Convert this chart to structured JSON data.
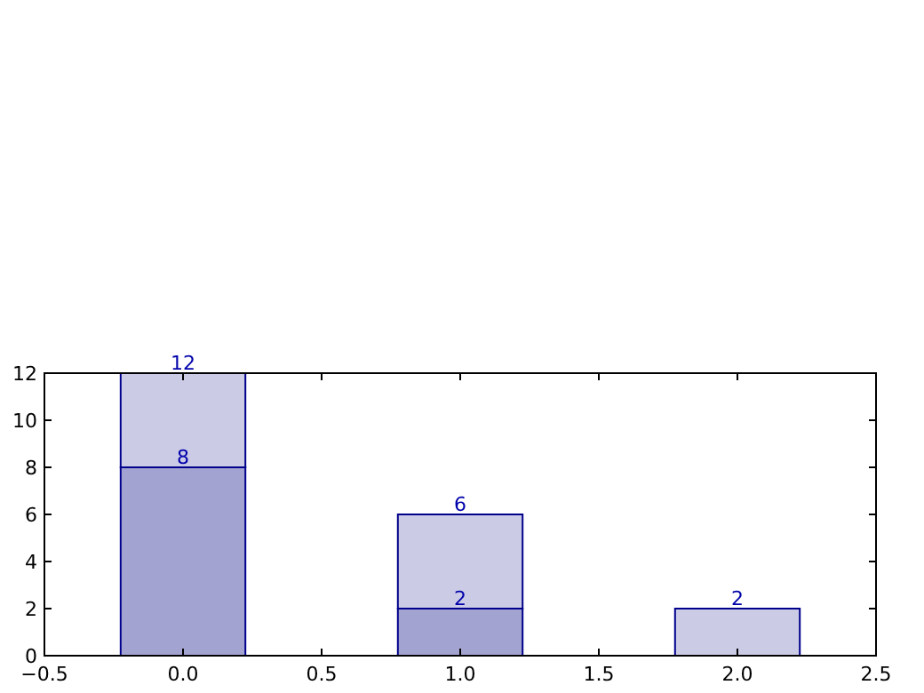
{
  "chart_data": {
    "type": "bar",
    "stacked": true,
    "x": [
      0,
      1,
      2
    ],
    "series": [
      {
        "color": "#a3a3d2",
        "values": [
          8,
          2,
          0
        ],
        "value_labels": [
          "8",
          "2",
          null
        ]
      },
      {
        "color": "#cbcbe6",
        "values": [
          4,
          4,
          2
        ]
      }
    ],
    "totals": [
      "12",
      "6",
      "2"
    ],
    "xlim": [
      -0.5,
      2.5
    ],
    "xticks": [
      {
        "value": -0.5,
        "label": "−0.5"
      },
      {
        "value": 0,
        "label": "0.0"
      },
      {
        "value": 0.5,
        "label": "0.5"
      },
      {
        "value": 1,
        "label": "1.0"
      },
      {
        "value": 1.5,
        "label": "1.5"
      },
      {
        "value": 2,
        "label": "2.0"
      },
      {
        "value": 2.5,
        "label": "2.5"
      }
    ],
    "ylim": [
      0,
      12
    ],
    "yticks": [
      0,
      2,
      4,
      6,
      8,
      10,
      12
    ],
    "grid": false
  }
}
